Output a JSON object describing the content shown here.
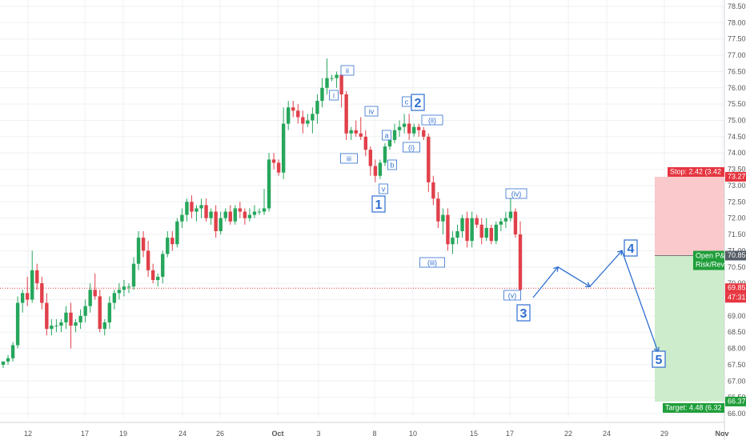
{
  "chart_data": {
    "type": "candlestick",
    "ylim": [
      66.0,
      78.5
    ],
    "y_ticks": [
      "66.00",
      "66.50",
      "67.00",
      "67.50",
      "68.00",
      "68.50",
      "69.00",
      "69.50",
      "70.00",
      "70.50",
      "71.00",
      "71.50",
      "72.00",
      "72.50",
      "73.00",
      "73.50",
      "74.00",
      "74.50",
      "75.00",
      "75.50",
      "76.00",
      "76.50",
      "77.00",
      "77.50",
      "78.00",
      "78.50"
    ],
    "x_ticks": [
      "12",
      "17",
      "19",
      "24",
      "26",
      "Oct",
      "3",
      "8",
      "10",
      "15",
      "17",
      "22",
      "24",
      "29",
      "Nov"
    ],
    "grid": true,
    "up_color": "#26a65b",
    "down_color": "#e0404a",
    "candles": [
      [
        67.5,
        67.6,
        67.4,
        67.6
      ],
      [
        67.6,
        67.8,
        67.5,
        67.7
      ],
      [
        67.7,
        68.2,
        67.6,
        68.1
      ],
      [
        68.1,
        69.6,
        68.0,
        69.4
      ],
      [
        69.4,
        69.8,
        69.1,
        69.7
      ],
      [
        69.7,
        70.2,
        69.3,
        69.5
      ],
      [
        69.5,
        71.0,
        69.4,
        70.4
      ],
      [
        70.4,
        70.6,
        69.8,
        70.0
      ],
      [
        70.0,
        70.2,
        69.2,
        69.4
      ],
      [
        69.4,
        69.7,
        68.4,
        68.6
      ],
      [
        68.6,
        68.9,
        68.4,
        68.7
      ],
      [
        68.7,
        68.9,
        68.5,
        68.7
      ],
      [
        68.7,
        68.9,
        68.5,
        68.8
      ],
      [
        68.8,
        69.3,
        68.6,
        69.1
      ],
      [
        69.1,
        69.4,
        68.0,
        68.7
      ],
      [
        68.7,
        68.9,
        68.5,
        68.8
      ],
      [
        68.8,
        69.2,
        68.6,
        69.0
      ],
      [
        69.0,
        69.5,
        68.8,
        69.3
      ],
      [
        69.3,
        70.0,
        69.1,
        69.8
      ],
      [
        69.8,
        70.3,
        69.5,
        69.6
      ],
      [
        69.6,
        69.8,
        68.5,
        68.6
      ],
      [
        68.6,
        68.9,
        68.4,
        68.8
      ],
      [
        68.8,
        69.6,
        68.6,
        69.4
      ],
      [
        69.4,
        69.8,
        69.2,
        69.7
      ],
      [
        69.7,
        70.0,
        69.5,
        69.8
      ],
      [
        69.8,
        70.1,
        69.6,
        69.9
      ],
      [
        69.9,
        70.0,
        69.7,
        69.9
      ],
      [
        69.9,
        70.8,
        69.8,
        70.6
      ],
      [
        70.6,
        71.6,
        70.4,
        71.4
      ],
      [
        71.4,
        71.6,
        70.8,
        71.0
      ],
      [
        71.0,
        71.3,
        70.2,
        70.4
      ],
      [
        70.4,
        70.6,
        70.0,
        70.1
      ],
      [
        70.1,
        70.3,
        69.9,
        70.2
      ],
      [
        70.2,
        71.0,
        70.0,
        70.9
      ],
      [
        70.9,
        71.6,
        70.8,
        71.4
      ],
      [
        71.4,
        71.6,
        71.0,
        71.2
      ],
      [
        71.2,
        72.0,
        71.1,
        71.9
      ],
      [
        71.9,
        72.3,
        71.7,
        72.1
      ],
      [
        72.1,
        72.6,
        71.9,
        72.5
      ],
      [
        72.5,
        72.7,
        72.0,
        72.2
      ],
      [
        72.2,
        72.4,
        71.9,
        72.3
      ],
      [
        72.3,
        72.6,
        72.0,
        72.4
      ],
      [
        72.4,
        72.6,
        71.9,
        72.0
      ],
      [
        72.0,
        72.3,
        71.8,
        72.2
      ],
      [
        72.2,
        72.4,
        71.4,
        71.6
      ],
      [
        71.6,
        72.2,
        71.5,
        72.0
      ],
      [
        72.0,
        72.3,
        71.9,
        72.2
      ],
      [
        72.2,
        72.4,
        71.8,
        71.9
      ],
      [
        71.9,
        72.4,
        71.8,
        72.3
      ],
      [
        72.3,
        72.5,
        72.0,
        72.2
      ],
      [
        72.2,
        72.3,
        71.8,
        72.0
      ],
      [
        72.0,
        72.3,
        71.9,
        72.1
      ],
      [
        72.1,
        72.4,
        72.0,
        72.2
      ],
      [
        72.2,
        72.3,
        72.1,
        72.2
      ],
      [
        72.2,
        72.9,
        72.1,
        72.3
      ],
      [
        72.3,
        74.0,
        72.2,
        73.8
      ],
      [
        73.8,
        74.0,
        73.5,
        73.7
      ],
      [
        73.7,
        73.8,
        73.3,
        73.4
      ],
      [
        73.4,
        75.4,
        73.2,
        74.9
      ],
      [
        74.9,
        75.6,
        74.7,
        75.4
      ],
      [
        75.4,
        75.6,
        75.1,
        75.3
      ],
      [
        75.3,
        75.5,
        74.9,
        75.1
      ],
      [
        75.1,
        75.3,
        74.6,
        74.9
      ],
      [
        74.9,
        75.2,
        74.8,
        75.0
      ],
      [
        75.0,
        75.4,
        74.6,
        75.2
      ],
      [
        75.2,
        75.8,
        74.9,
        75.6
      ],
      [
        75.6,
        76.3,
        75.4,
        76.0
      ],
      [
        76.0,
        76.9,
        75.8,
        76.3
      ],
      [
        76.3,
        76.4,
        76.2,
        76.3
      ],
      [
        76.3,
        76.5,
        76.0,
        76.4
      ],
      [
        76.4,
        76.5,
        75.4,
        75.8
      ],
      [
        75.8,
        75.9,
        74.4,
        74.6
      ],
      [
        74.6,
        74.8,
        74.4,
        74.7
      ],
      [
        74.7,
        75.0,
        74.5,
        74.6
      ],
      [
        74.6,
        75.1,
        74.4,
        74.5
      ],
      [
        74.5,
        74.7,
        73.9,
        74.1
      ],
      [
        74.1,
        74.2,
        73.3,
        73.6
      ],
      [
        73.6,
        73.8,
        73.1,
        73.3
      ],
      [
        73.3,
        73.8,
        73.2,
        73.7
      ],
      [
        73.7,
        74.3,
        73.6,
        74.2
      ],
      [
        74.2,
        74.6,
        74.1,
        74.4
      ],
      [
        74.4,
        74.9,
        74.3,
        74.7
      ],
      [
        74.7,
        75.0,
        74.5,
        74.8
      ],
      [
        74.8,
        75.2,
        74.6,
        74.9
      ],
      [
        74.9,
        75.2,
        74.4,
        74.6
      ],
      [
        74.6,
        74.9,
        74.5,
        74.8
      ],
      [
        74.8,
        74.9,
        74.5,
        74.7
      ],
      [
        74.7,
        74.8,
        74.4,
        74.5
      ],
      [
        74.5,
        74.6,
        72.8,
        73.1
      ],
      [
        73.1,
        73.3,
        72.4,
        72.6
      ],
      [
        72.6,
        72.8,
        71.7,
        71.9
      ],
      [
        71.9,
        72.3,
        71.5,
        72.1
      ],
      [
        72.1,
        72.3,
        71.0,
        71.2
      ],
      [
        71.2,
        71.6,
        70.9,
        71.4
      ],
      [
        71.4,
        71.8,
        71.2,
        71.6
      ],
      [
        71.6,
        72.1,
        71.4,
        72.0
      ],
      [
        72.0,
        72.2,
        71.1,
        71.3
      ],
      [
        71.3,
        72.2,
        71.1,
        72.0
      ],
      [
        72.0,
        72.1,
        71.7,
        71.8
      ],
      [
        71.8,
        72.0,
        71.2,
        71.4
      ],
      [
        71.4,
        72.0,
        71.3,
        71.7
      ],
      [
        71.7,
        71.8,
        71.2,
        71.3
      ],
      [
        71.3,
        71.9,
        71.2,
        71.8
      ],
      [
        71.8,
        72.0,
        71.6,
        71.9
      ],
      [
        71.9,
        72.2,
        71.7,
        72.0
      ],
      [
        72.0,
        72.8,
        71.9,
        72.2
      ],
      [
        72.2,
        72.3,
        71.4,
        71.5
      ],
      [
        71.5,
        71.9,
        69.7,
        69.8
      ]
    ],
    "projection": [
      [
        69.8,
        null
      ],
      [
        70.5,
        null
      ],
      [
        69.9,
        null
      ],
      [
        71.0,
        null
      ],
      [
        67.9,
        null
      ]
    ]
  },
  "wave_labels": {
    "minor": [
      "ii",
      "i",
      "iv",
      "iii",
      "v",
      "a",
      "b",
      "c",
      "(ii)",
      "(i)",
      "(iii)",
      "(iv)",
      "(v)"
    ],
    "major": [
      "1",
      "2",
      "3",
      "4",
      "5"
    ]
  },
  "price_tags": {
    "stop": "Stop: 2.42 (3.42",
    "stop_price": "73.27",
    "open": "Open P&",
    "risk": "Risk/Rev",
    "entry_price": "70.85",
    "current_price": "69.85",
    "countdown": "47:31",
    "target": "Target: 4.48 (6.32",
    "target_price": "66.37"
  },
  "colors": {
    "stop_zone": "#f9c9cb",
    "target_zone": "#cdeccb",
    "stop_tag": "#e6353f",
    "target_tag": "#1f9e3a",
    "wave_blue": "#2f6fd0"
  }
}
